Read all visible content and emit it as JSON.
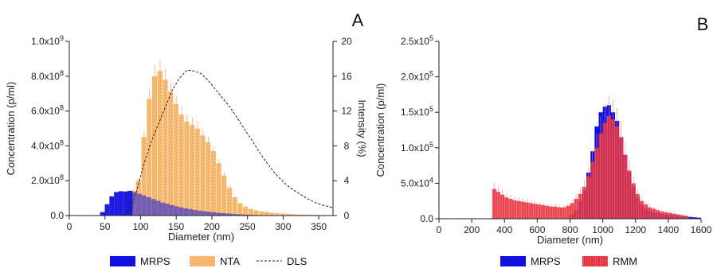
{
  "chart_data": [
    {
      "type": "bar",
      "panel_label": "A",
      "xlabel": "Diameter (nm)",
      "ylabel": "Concentration (p/ml)",
      "y2label": "Intensity (%)",
      "xlim": [
        0,
        370
      ],
      "ylim": [
        0,
        1000000000.0
      ],
      "y2lim": [
        0,
        20
      ],
      "x_ticks": [
        {
          "value": 0,
          "label": "0"
        },
        {
          "value": 50,
          "label": "50"
        },
        {
          "value": 100,
          "label": "100"
        },
        {
          "value": 150,
          "label": "150"
        },
        {
          "value": 200,
          "label": "200"
        },
        {
          "value": 250,
          "label": "250"
        },
        {
          "value": 300,
          "label": "300"
        },
        {
          "value": 350,
          "label": "350"
        }
      ],
      "y_ticks": [
        {
          "value": 0,
          "mant": "0.0",
          "exp": ""
        },
        {
          "value": 200000000.0,
          "mant": "2.0x10",
          "exp": "8"
        },
        {
          "value": 400000000.0,
          "mant": "4.0x10",
          "exp": "8"
        },
        {
          "value": 600000000.0,
          "mant": "6.0x10",
          "exp": "8"
        },
        {
          "value": 800000000.0,
          "mant": "8.0x10",
          "exp": "8"
        },
        {
          "value": 1000000000.0,
          "mant": "1.0x10",
          "exp": "9"
        }
      ],
      "y2_ticks": [
        {
          "value": 0,
          "label": "0"
        },
        {
          "value": 4,
          "label": "4"
        },
        {
          "value": 8,
          "label": "8"
        },
        {
          "value": 12,
          "label": "12"
        },
        {
          "value": 16,
          "label": "16"
        },
        {
          "value": 20,
          "label": "20"
        }
      ],
      "series": [
        {
          "name": "MRPS",
          "kind": "bar",
          "color": "#1010e0",
          "bin_width": 6.5,
          "x": [
            40,
            46.5,
            53,
            59.5,
            66,
            72.5,
            79,
            85.5,
            92,
            98.5,
            105,
            111.5,
            118,
            124.5,
            131,
            137.5,
            144,
            150.5,
            157,
            163.5,
            170,
            176.5,
            183,
            189.5,
            196,
            202.5,
            209,
            215.5,
            222,
            228.5,
            235,
            241.5,
            248,
            254.5,
            261,
            267.5,
            274,
            280.5,
            287
          ],
          "values": [
            2000000.0,
            20000000.0,
            65000000.0,
            110000000.0,
            135000000.0,
            140000000.0,
            138000000.0,
            142000000.0,
            135000000.0,
            125000000.0,
            115000000.0,
            105000000.0,
            95000000.0,
            85000000.0,
            75000000.0,
            68000000.0,
            60000000.0,
            53000000.0,
            47000000.0,
            42000000.0,
            37000000.0,
            32000000.0,
            28000000.0,
            25000000.0,
            22000000.0,
            19000000.0,
            16000000.0,
            14000000.0,
            12000000.0,
            10000000.0,
            8000000.0,
            6500000.0,
            5000000.0,
            4000000.0,
            3000000.0,
            2500000.0,
            2000000.0,
            1500000.0,
            1000000.0
          ]
        },
        {
          "name": "NTA",
          "kind": "bar",
          "color": "#f5ad5c",
          "bin_width": 7.5,
          "x": [
            82.5,
            90,
            97.5,
            105,
            112.5,
            120,
            127.5,
            135,
            142.5,
            150,
            157.5,
            165,
            172.5,
            180,
            187.5,
            195,
            202.5,
            210,
            217.5,
            225,
            232.5,
            240,
            247.5,
            255,
            262.5,
            270,
            277.5,
            285,
            292.5,
            300,
            307.5,
            315,
            322.5,
            330,
            337.5,
            345,
            352.5
          ],
          "values": [
            140000000.0,
            140000000.0,
            200000000.0,
            450000000.0,
            670000000.0,
            800000000.0,
            830000000.0,
            780000000.0,
            710000000.0,
            640000000.0,
            580000000.0,
            540000000.0,
            520000000.0,
            500000000.0,
            460000000.0,
            420000000.0,
            370000000.0,
            300000000.0,
            230000000.0,
            160000000.0,
            105000000.0,
            70000000.0,
            50000000.0,
            38000000.0,
            30000000.0,
            24000000.0,
            20000000.0,
            16000000.0,
            13000000.0,
            11000000.0,
            9000000.0,
            7000000.0,
            6000000.0,
            5000000.0,
            4500000.0,
            4000000.0,
            3000000.0
          ]
        },
        {
          "name": "DLS",
          "kind": "line",
          "axis": "y2",
          "color": "#222222",
          "x": [
            75,
            85,
            95,
            105,
            115,
            125,
            135,
            145,
            155,
            165,
            175,
            185,
            195,
            205,
            215,
            225,
            235,
            245,
            255,
            265,
            275,
            285,
            295,
            305,
            315,
            325,
            335,
            345,
            355,
            370
          ],
          "values": [
            0,
            0.5,
            3.0,
            6.0,
            8.5,
            10.5,
            12.5,
            14.5,
            15.8,
            16.7,
            16.6,
            16.3,
            15.5,
            14.5,
            13.5,
            12.5,
            11.3,
            10.0,
            8.8,
            7.5,
            6.3,
            5.2,
            4.3,
            3.5,
            2.9,
            2.4,
            1.9,
            1.5,
            1.2,
            0.9
          ]
        }
      ],
      "legend": {
        "placement": "bottom"
      }
    },
    {
      "type": "bar",
      "panel_label": "B",
      "xlabel": "Diameter (nm)",
      "ylabel": "Concentration (p/ml)",
      "xlim": [
        0,
        1600
      ],
      "ylim": [
        0,
        250000.0
      ],
      "x_ticks": [
        {
          "value": 0,
          "label": "0"
        },
        {
          "value": 200,
          "label": "200"
        },
        {
          "value": 400,
          "label": "400"
        },
        {
          "value": 600,
          "label": "600"
        },
        {
          "value": 800,
          "label": "800"
        },
        {
          "value": 1000,
          "label": "1000"
        },
        {
          "value": 1200,
          "label": "1200"
        },
        {
          "value": 1400,
          "label": "1400"
        },
        {
          "value": 1600,
          "label": "1600"
        }
      ],
      "y_ticks": [
        {
          "value": 0,
          "mant": "0.0",
          "exp": ""
        },
        {
          "value": 50000.0,
          "mant": "5.0x10",
          "exp": "4"
        },
        {
          "value": 100000.0,
          "mant": "1.0x10",
          "exp": "5"
        },
        {
          "value": 150000.0,
          "mant": "1.5x10",
          "exp": "5"
        },
        {
          "value": 200000.0,
          "mant": "2.0x10",
          "exp": "5"
        },
        {
          "value": 250000.0,
          "mant": "2.5x10",
          "exp": "5"
        }
      ],
      "series": [
        {
          "name": "MRPS",
          "kind": "bar",
          "color": "#1010e0",
          "bin_width": 25,
          "x": [
            812.5,
            837.5,
            862.5,
            887.5,
            912.5,
            937.5,
            962.5,
            987.5,
            1012.5,
            1037.5,
            1062.5,
            1087.5,
            1112.5,
            1137.5,
            1162.5,
            1187.5,
            1212.5,
            1237.5,
            1262.5,
            1287.5,
            1312.5,
            1337.5,
            1362.5,
            1387.5,
            1412.5,
            1437.5,
            1462.5,
            1487.5,
            1512.5,
            1537.5,
            1562.5,
            1587.5
          ],
          "values": [
            6000.0,
            12000.0,
            25000.0,
            40000.0,
            65000.0,
            95000.0,
            130000.0,
            150000.0,
            158000.0,
            160000.0,
            150000.0,
            138000.0,
            115000.0,
            90000.0,
            65000.0,
            45000.0,
            30000.0,
            20000.0,
            14000.0,
            11000.0,
            9000.0,
            8000.0,
            7000.0,
            6000.0,
            5500.0,
            5000.0,
            4000.0,
            3500.0,
            3000.0,
            2500.0,
            2000.0,
            1500.0
          ]
        },
        {
          "name": "RMM",
          "kind": "bar",
          "color": "#e8303c",
          "bin_width": 25,
          "x": [
            337.5,
            362.5,
            387.5,
            412.5,
            437.5,
            462.5,
            487.5,
            512.5,
            537.5,
            562.5,
            587.5,
            612.5,
            637.5,
            662.5,
            687.5,
            712.5,
            737.5,
            762.5,
            787.5,
            812.5,
            837.5,
            862.5,
            887.5,
            912.5,
            937.5,
            962.5,
            987.5,
            1012.5,
            1037.5,
            1062.5,
            1087.5,
            1112.5,
            1137.5,
            1162.5,
            1187.5,
            1212.5,
            1237.5,
            1262.5,
            1287.5,
            1312.5,
            1337.5,
            1362.5,
            1387.5,
            1412.5,
            1437.5,
            1462.5,
            1487.5,
            1512.5
          ],
          "values": [
            42000.0,
            38000.0,
            34000.0,
            30000.0,
            28000.0,
            26000.0,
            25000.0,
            24000.0,
            23000.0,
            22000.0,
            21000.0,
            20000.0,
            19000.0,
            18000.0,
            17000.0,
            17000.0,
            16000.0,
            16000.0,
            18000.0,
            22000.0,
            28000.0,
            35000.0,
            45000.0,
            60000.0,
            80000.0,
            100000.0,
            120000.0,
            135000.0,
            145000.0,
            140000.0,
            130000.0,
            115000.0,
            90000.0,
            68000.0,
            50000.0,
            35000.0,
            25000.0,
            20000.0,
            16000.0,
            14000.0,
            12000.0,
            10000.0,
            9000.0,
            8000.0,
            7000.0,
            6000.0,
            5000.0,
            4000.0
          ]
        }
      ],
      "legend": {
        "placement": "bottom"
      }
    }
  ]
}
